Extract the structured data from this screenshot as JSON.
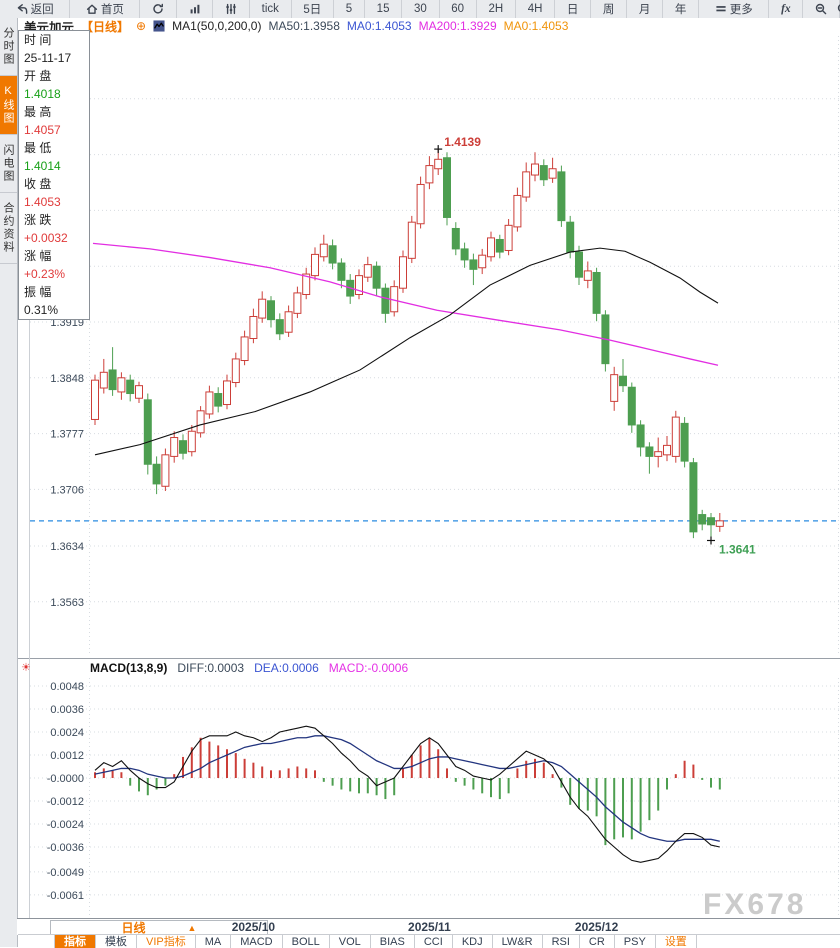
{
  "toolbar": {
    "items": [
      {
        "name": "back",
        "label": "返回",
        "icon": "back",
        "wide": true
      },
      {
        "name": "home",
        "label": "首页",
        "icon": "home",
        "wide": true
      },
      {
        "name": "refresh",
        "icon": "refresh"
      },
      {
        "name": "chart-style",
        "icon": "bars"
      },
      {
        "name": "indicator-settings",
        "icon": "sliders"
      },
      {
        "name": "tick",
        "label": "tick"
      },
      {
        "name": "5d",
        "label": "5日"
      },
      {
        "name": "m5",
        "label": "5"
      },
      {
        "name": "m15",
        "label": "15"
      },
      {
        "name": "m30",
        "label": "30"
      },
      {
        "name": "m60",
        "label": "60"
      },
      {
        "name": "h2",
        "label": "2H"
      },
      {
        "name": "h4",
        "label": "4H"
      },
      {
        "name": "day",
        "label": "日"
      },
      {
        "name": "week",
        "label": "周"
      },
      {
        "name": "month",
        "label": "月"
      },
      {
        "name": "year",
        "label": "年"
      },
      {
        "name": "more",
        "label": "更多",
        "icon": "menu",
        "wide": true
      },
      {
        "name": "fx",
        "label": "fx",
        "fx": true
      },
      {
        "name": "zoom-out",
        "icon": "zoom-out"
      }
    ]
  },
  "sidebar": {
    "tabs": [
      {
        "name": "time-share-chart",
        "label": "分时图",
        "active": false
      },
      {
        "name": "candle-chart",
        "label": "K线图",
        "active": true
      },
      {
        "name": "lightning-chart",
        "label": "闪电图",
        "active": false
      },
      {
        "name": "contract-info",
        "label": "合约资料",
        "active": false
      }
    ]
  },
  "chart_header": {
    "symbol": "美元加元",
    "period": "【日线】",
    "plus": "⊕",
    "ma_group": "MA1(50,0,200,0)",
    "ma50": "MA50:1.3958",
    "ma0": "MA0:1.4053",
    "ma200": "MA200:1.3929",
    "ma0_2": "MA0:1.4053"
  },
  "info_panel": {
    "rows": [
      {
        "label": "时 间",
        "value": "25-11-17",
        "cls": "plain"
      },
      {
        "label": "开 盘",
        "value": "1.4018",
        "cls": "down"
      },
      {
        "label": "最 高",
        "value": "1.4057",
        "cls": "up"
      },
      {
        "label": "最 低",
        "value": "1.4014",
        "cls": "down"
      },
      {
        "label": "收 盘",
        "value": "1.4053",
        "cls": "up"
      },
      {
        "label": "涨 跌",
        "value": "+0.0032",
        "cls": "up"
      },
      {
        "label": "涨 幅",
        "value": "+0.23%",
        "cls": "up"
      },
      {
        "label": "振 幅",
        "value": "0.31%",
        "cls": "plain"
      }
    ]
  },
  "macd_header": {
    "title": "MACD(13,8,9)",
    "diff": "DIFF:0.0003",
    "dea": "DEA:0.0006",
    "macd": "MACD:-0.0006"
  },
  "x_axis": {
    "labels": [
      {
        "text": "2025/10",
        "i": 18
      },
      {
        "text": "2025/11",
        "i": 38
      },
      {
        "text": "2025/12",
        "i": 57
      }
    ]
  },
  "timeframe_box": {
    "label": "日线",
    "arrow": "▲"
  },
  "bottom_tabs": [
    {
      "label": "指标",
      "active": true
    },
    {
      "label": "模板"
    },
    {
      "label": "VIP指标",
      "orange": true
    },
    {
      "label": "MA"
    },
    {
      "label": "MACD"
    },
    {
      "label": "BOLL"
    },
    {
      "label": "VOL"
    },
    {
      "label": "BIAS"
    },
    {
      "label": "CCI"
    },
    {
      "label": "KDJ"
    },
    {
      "label": "LW&R"
    },
    {
      "label": "RSI"
    },
    {
      "label": "CR"
    },
    {
      "label": "PSY"
    },
    {
      "label": "设置",
      "orange": true
    }
  ],
  "watermark": "FX678",
  "colors": {
    "up": "#cc3e38",
    "down": "#4d9e50",
    "ma50": "#111111",
    "ma200": "#e22ee2",
    "dea": "#23357f",
    "diff": "#111111",
    "grid": "#d7dce1",
    "axis_text": "#3c4a5a",
    "last_price_line": "#2a8be0",
    "accent": "#f07800"
  },
  "chart_data": [
    {
      "type": "candlestick",
      "title": "美元加元 日线",
      "y_axis": {
        "grid": [
          {
            "p": 1.4203
          },
          {
            "p": 1.4132
          },
          {
            "p": 1.4061
          },
          {
            "p": 1.399
          },
          {
            "p": 1.3919,
            "label": "1.3919"
          },
          {
            "p": 1.3848,
            "label": "1.3848"
          },
          {
            "p": 1.3777,
            "label": "1.3777"
          },
          {
            "p": 1.3706,
            "label": "1.3706"
          },
          {
            "p": 1.3634,
            "label": "1.3634"
          },
          {
            "p": 1.3563,
            "label": "1.3563"
          }
        ]
      },
      "x_labels": [
        "2025/10",
        "2025/11",
        "2025/12"
      ],
      "last_price_line": 1.3666,
      "high_annotation": "1.4139",
      "low_annotation": "1.3641",
      "candles": [
        [
          1.3795,
          1.3852,
          1.3788,
          1.3845
        ],
        [
          1.3835,
          1.3872,
          1.3828,
          1.3855
        ],
        [
          1.3858,
          1.3887,
          1.3825,
          1.3833
        ],
        [
          1.383,
          1.3855,
          1.382,
          1.3848
        ],
        [
          1.3845,
          1.3852,
          1.3818,
          1.3828
        ],
        [
          1.3822,
          1.3843,
          1.3816,
          1.3838
        ],
        [
          1.382,
          1.3828,
          1.3725,
          1.3738
        ],
        [
          1.3738,
          1.3748,
          1.37,
          1.3713
        ],
        [
          1.371,
          1.3758,
          1.3704,
          1.375
        ],
        [
          1.3748,
          1.378,
          1.374,
          1.3772
        ],
        [
          1.3768,
          1.3776,
          1.3744,
          1.3752
        ],
        [
          1.3754,
          1.3788,
          1.3748,
          1.378
        ],
        [
          1.3778,
          1.3812,
          1.3772,
          1.3806
        ],
        [
          1.3802,
          1.3838,
          1.3796,
          1.383
        ],
        [
          1.3828,
          1.3836,
          1.3804,
          1.3812
        ],
        [
          1.3814,
          1.3852,
          1.3808,
          1.3844
        ],
        [
          1.3842,
          1.388,
          1.3836,
          1.3872
        ],
        [
          1.387,
          1.3908,
          1.3864,
          1.39
        ],
        [
          1.3898,
          1.3936,
          1.3892,
          1.3926
        ],
        [
          1.3924,
          1.3958,
          1.3918,
          1.3948
        ],
        [
          1.3946,
          1.3952,
          1.3912,
          1.3922
        ],
        [
          1.3922,
          1.393,
          1.3896,
          1.3904
        ],
        [
          1.3906,
          1.394,
          1.39,
          1.3932
        ],
        [
          1.393,
          1.3964,
          1.3924,
          1.3956
        ],
        [
          1.3954,
          1.3988,
          1.3948,
          1.398
        ],
        [
          1.3978,
          1.4014,
          1.3972,
          1.4005
        ],
        [
          1.4002,
          1.403,
          1.3996,
          1.4018
        ],
        [
          1.4016,
          1.4024,
          1.3986,
          1.3994
        ],
        [
          1.3994,
          1.4,
          1.3962,
          1.3972
        ],
        [
          1.3972,
          1.398,
          1.3942,
          1.3952
        ],
        [
          1.3954,
          1.3986,
          1.3948,
          1.3978
        ],
        [
          1.3976,
          1.4002,
          1.397,
          1.3992
        ],
        [
          1.399,
          1.3996,
          1.3952,
          1.3962
        ],
        [
          1.3962,
          1.3968,
          1.3918,
          1.393
        ],
        [
          1.3932,
          1.3972,
          1.3926,
          1.3964
        ],
        [
          1.3962,
          1.401,
          1.3956,
          1.4002
        ],
        [
          1.4,
          1.4054,
          1.3994,
          1.4046
        ],
        [
          1.4044,
          1.4104,
          1.4038,
          1.4094
        ],
        [
          1.4096,
          1.413,
          1.4088,
          1.4118
        ],
        [
          1.4114,
          1.4139,
          1.4106,
          1.4126
        ],
        [
          1.4128,
          1.4135,
          1.4042,
          1.4052
        ],
        [
          1.4038,
          1.4046,
          1.4004,
          1.4012
        ],
        [
          1.4012,
          1.402,
          1.3988,
          1.3998
        ],
        [
          1.3998,
          1.4006,
          1.3966,
          1.3986
        ],
        [
          1.3988,
          1.4012,
          1.398,
          1.4004
        ],
        [
          1.4002,
          1.4034,
          1.3996,
          1.4026
        ],
        [
          1.4024,
          1.403,
          1.4,
          1.4008
        ],
        [
          1.401,
          1.405,
          1.4004,
          1.4042
        ],
        [
          1.404,
          1.409,
          1.4034,
          1.408
        ],
        [
          1.4078,
          1.4122,
          1.4072,
          1.411
        ],
        [
          1.4106,
          1.4135,
          1.4098,
          1.412
        ],
        [
          1.4118,
          1.4126,
          1.4092,
          1.41
        ],
        [
          1.4102,
          1.4128,
          1.4096,
          1.4114
        ],
        [
          1.411,
          1.4118,
          1.404,
          1.4048
        ],
        [
          1.4046,
          1.4054,
          1.4,
          1.4008
        ],
        [
          1.4008,
          1.4016,
          1.3966,
          1.3976
        ],
        [
          1.3972,
          1.3996,
          1.3962,
          1.3984
        ],
        [
          1.3982,
          1.3988,
          1.392,
          1.393
        ],
        [
          1.3928,
          1.3934,
          1.3856,
          1.3866
        ],
        [
          1.3818,
          1.3862,
          1.3806,
          1.3852
        ],
        [
          1.385,
          1.3872,
          1.383,
          1.3838
        ],
        [
          1.3836,
          1.3842,
          1.3778,
          1.3788
        ],
        [
          1.3788,
          1.3794,
          1.3748,
          1.376
        ],
        [
          1.376,
          1.3766,
          1.3726,
          1.3748
        ],
        [
          1.3748,
          1.3772,
          1.3734,
          1.3754
        ],
        [
          1.375,
          1.3774,
          1.3742,
          1.3762
        ],
        [
          1.3748,
          1.3806,
          1.374,
          1.3798
        ],
        [
          1.379,
          1.3798,
          1.3734,
          1.3742
        ],
        [
          1.374,
          1.3746,
          1.3644,
          1.3652
        ],
        [
          1.3674,
          1.368,
          1.3654,
          1.3662
        ],
        [
          1.367,
          1.3676,
          1.3641,
          1.3661
        ],
        [
          1.3659,
          1.3676,
          1.3652,
          1.3666
        ]
      ],
      "ma50_points": [
        [
          95,
          1.375
        ],
        [
          140,
          1.3763
        ],
        [
          200,
          1.3788
        ],
        [
          255,
          1.3805
        ],
        [
          310,
          1.383
        ],
        [
          360,
          1.3858
        ],
        [
          410,
          1.3899
        ],
        [
          450,
          1.3928
        ],
        [
          490,
          1.3966
        ],
        [
          530,
          1.3991
        ],
        [
          570,
          1.4008
        ],
        [
          600,
          1.4013
        ],
        [
          625,
          1.4009
        ],
        [
          650,
          1.3995
        ],
        [
          680,
          1.3975
        ],
        [
          700,
          1.3957
        ],
        [
          718,
          1.3943
        ]
      ],
      "ma200_points": [
        [
          93,
          1.4019
        ],
        [
          150,
          1.4012
        ],
        [
          210,
          1.4001
        ],
        [
          270,
          1.3988
        ],
        [
          330,
          1.397
        ],
        [
          380,
          1.3951
        ],
        [
          437,
          1.3934
        ],
        [
          500,
          1.3921
        ],
        [
          560,
          1.3909
        ],
        [
          610,
          1.3896
        ],
        [
          660,
          1.3881
        ],
        [
          690,
          1.3872
        ],
        [
          718,
          1.3864
        ]
      ]
    },
    {
      "type": "macd-histogram",
      "params": "MACD(13,8,9)",
      "y_axis": {
        "grid": [
          {
            "v": 0.0048,
            "label": "0.0048"
          },
          {
            "v": 0.0036,
            "label": "0.0036"
          },
          {
            "v": 0.0024,
            "label": "0.0024"
          },
          {
            "v": 0.0012,
            "label": "0.0012"
          },
          {
            "v": 0.0,
            "label": "-0.0000"
          },
          {
            "v": -0.0012,
            "label": "-0.0012"
          },
          {
            "v": -0.0024,
            "label": "-0.0024"
          },
          {
            "v": -0.0036,
            "label": "-0.0036"
          },
          {
            "v": -0.0049,
            "label": "-0.0049"
          },
          {
            "v": -0.0061,
            "label": "-0.0061"
          }
        ]
      },
      "hist": [
        0.0003,
        0.0005,
        0.0004,
        0.0003,
        -0.0004,
        -0.0007,
        -0.0009,
        -0.0006,
        -0.0004,
        0.0002,
        0.0011,
        0.0016,
        0.0021,
        0.0019,
        0.0017,
        0.0015,
        0.0013,
        0.001,
        0.0008,
        0.0006,
        0.0004,
        0.0004,
        0.0005,
        0.0006,
        0.0005,
        0.0004,
        -0.0002,
        -0.0004,
        -0.0006,
        -0.0007,
        -0.0008,
        -0.0008,
        -0.0009,
        -0.0011,
        -0.0009,
        0.0005,
        0.0012,
        0.0017,
        0.0021,
        0.0015,
        0.0005,
        -0.0002,
        -0.0004,
        -0.0006,
        -0.0008,
        -0.001,
        -0.0011,
        -0.0008,
        0.0005,
        0.0009,
        0.001,
        0.0008,
        0.0002,
        -0.0005,
        -0.0014,
        -0.0016,
        -0.0017,
        -0.002,
        -0.0035,
        -0.0032,
        -0.0031,
        -0.0032,
        -0.0028,
        -0.0022,
        -0.0017,
        -0.0006,
        0.0002,
        0.0009,
        0.0007,
        -0.0001,
        -0.0005,
        -0.0006
      ],
      "diff": [
        0.0004,
        0.0008,
        0.0006,
        0.0009,
        0.0004,
        0.0,
        -0.0003,
        -0.0005,
        -0.0005,
        -0.0002,
        0.0006,
        0.0014,
        0.002,
        0.0022,
        0.0022,
        0.0022,
        0.0024,
        0.0022,
        0.0021,
        0.0019,
        0.0021,
        0.0024,
        0.0025,
        0.0026,
        0.0027,
        0.0026,
        0.0022,
        0.0018,
        0.0013,
        0.0009,
        0.0004,
        0.0001,
        -0.0004,
        -0.0002,
        0.0,
        0.0006,
        0.0012,
        0.0018,
        0.0021,
        0.0018,
        0.0012,
        0.0006,
        0.0004,
        0.0001,
        0.0,
        -0.0001,
        0.0002,
        0.0006,
        0.001,
        0.0014,
        0.0012,
        0.001,
        0.0006,
        -0.0002,
        -0.001,
        -0.0016,
        -0.002,
        -0.0026,
        -0.0032,
        -0.0036,
        -0.004,
        -0.0043,
        -0.0044,
        -0.0043,
        -0.0042,
        -0.0038,
        -0.0033,
        -0.0029,
        -0.0029,
        -0.0031,
        -0.0035,
        -0.0036
      ],
      "dea": [
        0.0002,
        0.0003,
        0.0004,
        0.0005,
        0.0005,
        0.0004,
        0.0002,
        0.0001,
        0.0,
        0.0,
        0.0001,
        0.0003,
        0.0005,
        0.0008,
        0.001,
        0.0012,
        0.0014,
        0.0016,
        0.0017,
        0.0018,
        0.0018,
        0.0019,
        0.002,
        0.0021,
        0.0021,
        0.0022,
        0.0022,
        0.0021,
        0.002,
        0.0018,
        0.0015,
        0.0012,
        0.0009,
        0.0007,
        0.0005,
        0.0005,
        0.0006,
        0.0008,
        0.001,
        0.0011,
        0.0011,
        0.001,
        0.0009,
        0.0008,
        0.0007,
        0.0006,
        0.0005,
        0.0005,
        0.0006,
        0.0007,
        0.0008,
        0.0009,
        0.0008,
        0.0006,
        0.0002,
        -0.0002,
        -0.0006,
        -0.001,
        -0.0015,
        -0.0019,
        -0.0023,
        -0.0026,
        -0.0029,
        -0.0031,
        -0.0032,
        -0.0033,
        -0.0033,
        -0.0032,
        -0.0032,
        -0.0032,
        -0.0032,
        -0.0033
      ]
    }
  ]
}
